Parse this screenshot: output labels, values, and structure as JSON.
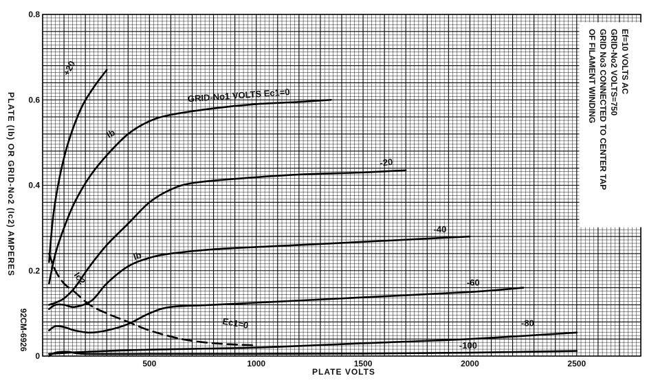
{
  "chart_data": {
    "type": "line",
    "xlabel": "PLATE VOLTS",
    "ylabel": "PLATE (Ib) OR GRID-No2 (Ic2) AMPERES",
    "xlim": [
      0,
      2800
    ],
    "ylim": [
      0,
      0.8
    ],
    "x_ticks": [
      "500",
      "1000",
      "1500",
      "2000",
      "2500"
    ],
    "y_ticks": [
      "0",
      "0.2",
      "0.4",
      "0.6",
      "0.8"
    ],
    "grid": true,
    "notes": [
      "Ef=10 VOLTS AC",
      "GRID-No2 VOLTS=750",
      "GRID No3 CONNECTED TO CENTER TAP",
      "OF FILAMENT WINDING"
    ],
    "figure_code": "92CM-6926",
    "series": [
      {
        "name": "+20",
        "kind": "Ib",
        "label_at": [
          240,
          0.655
        ],
        "points": [
          [
            30,
            0.22
          ],
          [
            50,
            0.33
          ],
          [
            80,
            0.42
          ],
          [
            120,
            0.5
          ],
          [
            180,
            0.58
          ],
          [
            240,
            0.63
          ],
          [
            300,
            0.67
          ]
        ]
      },
      {
        "name": "GRID-No1 VOLTS Ec1=0",
        "kind": "Ib",
        "label_at": [
          680,
          0.59
        ],
        "points": [
          [
            30,
            0.17
          ],
          [
            60,
            0.24
          ],
          [
            100,
            0.3
          ],
          [
            150,
            0.36
          ],
          [
            220,
            0.42
          ],
          [
            300,
            0.47
          ],
          [
            400,
            0.52
          ],
          [
            500,
            0.55
          ],
          [
            600,
            0.565
          ],
          [
            800,
            0.58
          ],
          [
            1000,
            0.59
          ],
          [
            1200,
            0.595
          ],
          [
            1350,
            0.6
          ]
        ]
      },
      {
        "name": "-20",
        "points": [
          [
            30,
            0.12
          ],
          [
            60,
            0.125
          ],
          [
            100,
            0.135
          ],
          [
            150,
            0.16
          ],
          [
            220,
            0.21
          ],
          [
            300,
            0.26
          ],
          [
            400,
            0.31
          ],
          [
            500,
            0.36
          ],
          [
            600,
            0.39
          ],
          [
            700,
            0.405
          ],
          [
            900,
            0.415
          ],
          [
            1200,
            0.425
          ],
          [
            1500,
            0.43
          ],
          [
            1700,
            0.435
          ]
        ]
      },
      {
        "name": "-40",
        "points": [
          [
            30,
            0.11
          ],
          [
            60,
            0.12
          ],
          [
            100,
            0.12
          ],
          [
            150,
            0.115
          ],
          [
            230,
            0.13
          ],
          [
            300,
            0.17
          ],
          [
            400,
            0.21
          ],
          [
            500,
            0.23
          ],
          [
            600,
            0.24
          ],
          [
            800,
            0.25
          ],
          [
            1200,
            0.26
          ],
          [
            1600,
            0.27
          ],
          [
            2000,
            0.28
          ]
        ]
      },
      {
        "name": "-60",
        "points": [
          [
            30,
            0.06
          ],
          [
            60,
            0.07
          ],
          [
            100,
            0.068
          ],
          [
            150,
            0.06
          ],
          [
            220,
            0.055
          ],
          [
            300,
            0.06
          ],
          [
            400,
            0.075
          ],
          [
            500,
            0.1
          ],
          [
            600,
            0.115
          ],
          [
            800,
            0.12
          ],
          [
            1200,
            0.13
          ],
          [
            1600,
            0.14
          ],
          [
            2000,
            0.15
          ],
          [
            2250,
            0.16
          ]
        ]
      },
      {
        "name": "-80",
        "points": [
          [
            30,
            0.005
          ],
          [
            200,
            0.01
          ],
          [
            500,
            0.015
          ],
          [
            1000,
            0.02
          ],
          [
            1500,
            0.03
          ],
          [
            2000,
            0.04
          ],
          [
            2500,
            0.055
          ]
        ]
      },
      {
        "name": "-100",
        "points": [
          [
            30,
            0.0
          ],
          [
            60,
            0.008
          ],
          [
            120,
            0.01
          ],
          [
            200,
            0.005
          ],
          [
            500,
            0.005
          ],
          [
            1000,
            0.005
          ],
          [
            1500,
            0.006
          ],
          [
            2000,
            0.008
          ],
          [
            2500,
            0.012
          ]
        ]
      },
      {
        "name": "Ic2 Ec1=0",
        "kind": "Ic2",
        "dashed": true,
        "points": [
          [
            30,
            0.24
          ],
          [
            60,
            0.2
          ],
          [
            100,
            0.17
          ],
          [
            150,
            0.15
          ],
          [
            220,
            0.12
          ],
          [
            300,
            0.1
          ],
          [
            400,
            0.08
          ],
          [
            500,
            0.06
          ],
          [
            650,
            0.04
          ],
          [
            800,
            0.03
          ],
          [
            1000,
            0.025
          ]
        ]
      }
    ],
    "annotations": [
      {
        "text": "Ib",
        "near": [
          190,
          0.52
        ]
      },
      {
        "text": "Ib",
        "near": [
          440,
          0.225
        ]
      },
      {
        "text": "Ic2",
        "near": [
          180,
          0.17
        ]
      },
      {
        "text": "Ec1=0",
        "near": [
          850,
          0.085
        ]
      }
    ]
  }
}
